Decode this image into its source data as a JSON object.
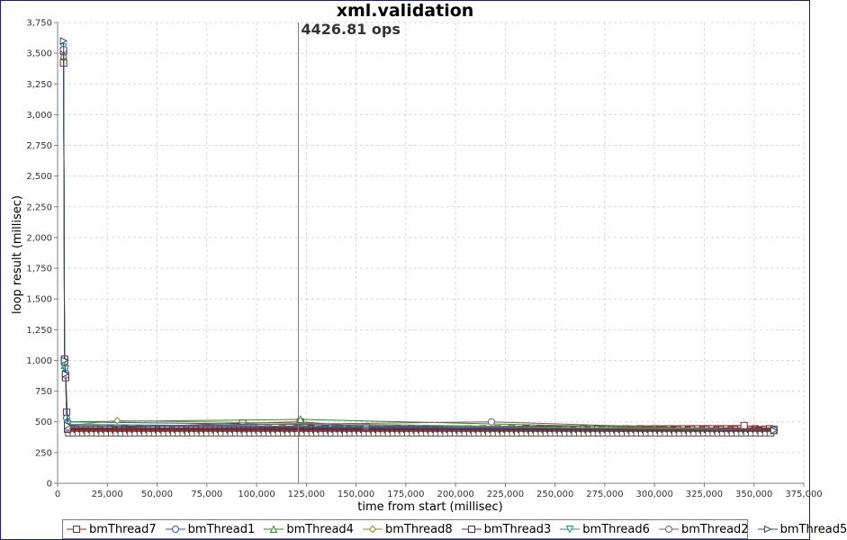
{
  "chart_data": {
    "type": "line",
    "title": "xml.validation",
    "xlabel": "time from start (millisec)",
    "ylabel": "loop result (millisec)",
    "xlim": [
      0,
      375000
    ],
    "ylim": [
      0,
      3750
    ],
    "xticks": [
      0,
      25000,
      50000,
      75000,
      100000,
      125000,
      150000,
      175000,
      200000,
      225000,
      250000,
      275000,
      300000,
      325000,
      350000,
      375000
    ],
    "xtick_labels": [
      "0",
      "25,000",
      "50,000",
      "75,000",
      "100,000",
      "125,000",
      "150,000",
      "175,000",
      "200,000",
      "225,000",
      "250,000",
      "275,000",
      "300,000",
      "325,000",
      "350,000",
      "375,000"
    ],
    "yticks": [
      0,
      250,
      500,
      750,
      1000,
      1250,
      1500,
      1750,
      2000,
      2250,
      2500,
      2750,
      3000,
      3250,
      3500,
      3750
    ],
    "ytick_labels": [
      "0",
      "250",
      "500",
      "750",
      "1,000",
      "1,250",
      "1,500",
      "1,750",
      "2,000",
      "2,250",
      "2,500",
      "2,750",
      "3,000",
      "3,250",
      "3,500",
      "3,750"
    ],
    "grid": true,
    "legend_position": "bottom",
    "marker_line": {
      "x": 121000,
      "label": "4426.81 ops"
    },
    "series": [
      {
        "name": "bmThread7",
        "color": "#8c2a2a",
        "marker": "square",
        "x": [
          3000,
          3500,
          4000,
          4500,
          5000,
          93000,
          122000,
          155000,
          345000,
          360000
        ],
        "y": [
          3420,
          1000,
          870,
          580,
          440,
          490,
          500,
          460,
          470,
          440
        ]
      },
      {
        "name": "bmThread1",
        "color": "#2a5aa8",
        "marker": "circle",
        "x": [
          3000,
          3500,
          4000,
          4500,
          5000,
          360000
        ],
        "y": [
          3500,
          980,
          900,
          530,
          500,
          430
        ]
      },
      {
        "name": "bmThread4",
        "color": "#2a8c2a",
        "marker": "triangle-up",
        "x": [
          3000,
          3500,
          4000,
          5000,
          122000,
          360000
        ],
        "y": [
          3480,
          960,
          880,
          500,
          520,
          430
        ]
      },
      {
        "name": "bmThread8",
        "color": "#8c8c2a",
        "marker": "diamond",
        "x": [
          3000,
          3500,
          4000,
          5000,
          30000,
          360000
        ],
        "y": [
          3470,
          970,
          890,
          470,
          510,
          430
        ]
      },
      {
        "name": "bmThread3",
        "color": "#5a2a5a",
        "marker": "square",
        "x": [
          3000,
          3500,
          4000,
          5000,
          360000
        ],
        "y": [
          3520,
          1010,
          860,
          450,
          430
        ]
      },
      {
        "name": "bmThread6",
        "color": "#2a8c8c",
        "marker": "triangle-down",
        "x": [
          3000,
          3500,
          4000,
          5000,
          360000
        ],
        "y": [
          3550,
          940,
          930,
          480,
          430
        ]
      },
      {
        "name": "bmThread2",
        "color": "#7a5a6a",
        "marker": "circle",
        "x": [
          3000,
          3500,
          4000,
          5000,
          218000,
          360000
        ],
        "y": [
          3530,
          990,
          880,
          460,
          500,
          430
        ]
      },
      {
        "name": "bmThread5",
        "color": "#2a4a6a",
        "marker": "triangle-right",
        "x": [
          3000,
          3500,
          4000,
          5000,
          360000
        ],
        "y": [
          3600,
          1000,
          890,
          470,
          430
        ]
      }
    ]
  }
}
